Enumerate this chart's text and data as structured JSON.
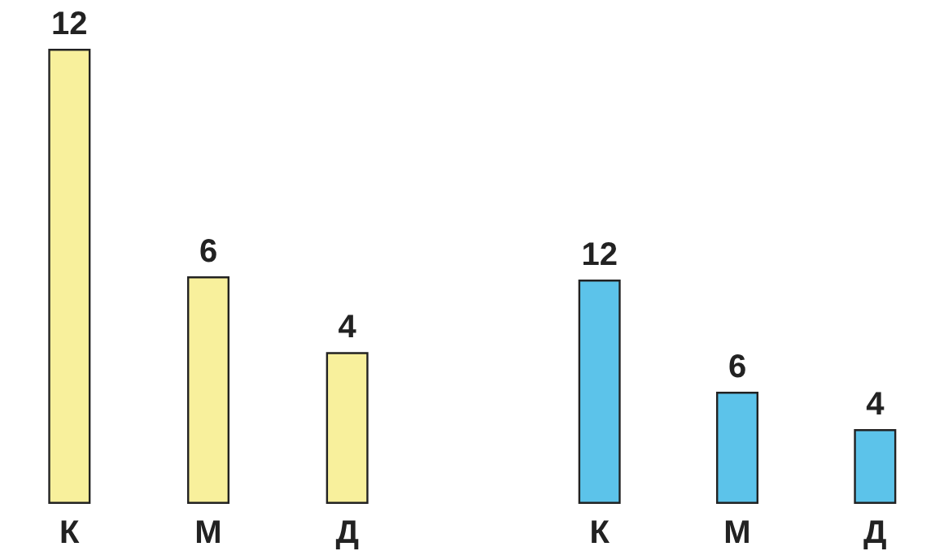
{
  "chart_data": [
    {
      "type": "bar",
      "categories": [
        "К",
        "М",
        "Д"
      ],
      "series": [
        {
          "color": "#f8f09c",
          "values": [
            12,
            6,
            4
          ]
        }
      ],
      "data_labels": true
    },
    {
      "type": "bar",
      "categories": [
        "К",
        "М",
        "Д"
      ],
      "series": [
        {
          "color": "#5cc3ea",
          "values": [
            12,
            6,
            4
          ]
        }
      ],
      "data_labels": true
    }
  ]
}
